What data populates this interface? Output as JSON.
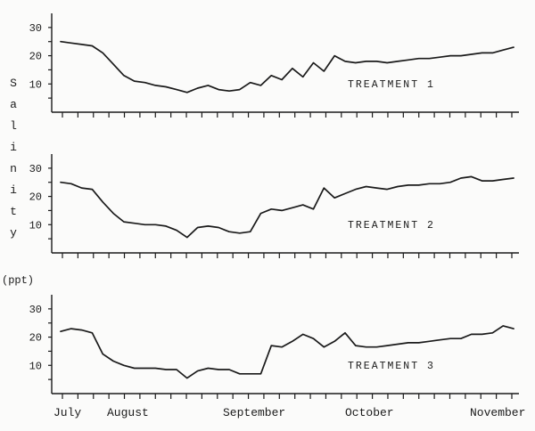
{
  "page": {
    "background": "#fbfbfa",
    "ink": "#1a1a1a"
  },
  "y_axis": {
    "label_vertical": "Salinity",
    "unit": "(ppt)",
    "tick_labels": [
      "30",
      "20",
      "10"
    ]
  },
  "x_axis": {
    "month_labels": [
      "July",
      "August",
      "September",
      "October",
      "November"
    ]
  },
  "chart_data": [
    {
      "type": "line",
      "title": "TREATMENT 1",
      "ylabel": "Salinity (ppt)",
      "ylim": [
        0,
        35
      ],
      "yticks": [
        10,
        20,
        30
      ],
      "x_range_months": [
        "July",
        "November"
      ],
      "grid": false,
      "values": [
        25,
        24.5,
        24,
        23.5,
        21,
        17,
        13,
        11,
        10.5,
        9.5,
        9,
        8,
        7,
        8.5,
        9.5,
        8,
        7.5,
        8,
        10.5,
        9.5,
        13,
        11.5,
        15.5,
        12.5,
        17.5,
        14.5,
        20,
        18,
        17.5,
        18,
        18,
        17.5,
        18,
        18.5,
        19,
        19,
        19.5,
        20,
        20,
        20.5,
        21,
        21,
        22,
        23
      ]
    },
    {
      "type": "line",
      "title": "TREATMENT 2",
      "ylabel": "Salinity (ppt)",
      "ylim": [
        0,
        35
      ],
      "yticks": [
        10,
        20,
        30
      ],
      "x_range_months": [
        "July",
        "November"
      ],
      "grid": false,
      "values": [
        25,
        24.5,
        23,
        22.5,
        18,
        14,
        11,
        10.5,
        10,
        10,
        9.5,
        8,
        5.5,
        9,
        9.5,
        9,
        7.5,
        7,
        7.5,
        14,
        15.5,
        15,
        16,
        17,
        15.5,
        23,
        19.5,
        21,
        22.5,
        23.5,
        23,
        22.5,
        23.5,
        24,
        24,
        24.5,
        24.5,
        25,
        26.5,
        27,
        25.5,
        25.5,
        26,
        26.5
      ]
    },
    {
      "type": "line",
      "title": "TREATMENT 3",
      "ylabel": "Salinity (ppt)",
      "ylim": [
        0,
        35
      ],
      "yticks": [
        10,
        20,
        30
      ],
      "x_range_months": [
        "July",
        "November"
      ],
      "grid": false,
      "values": [
        22,
        23,
        22.5,
        21.5,
        14,
        11.5,
        10,
        9,
        9,
        9,
        8.5,
        8.5,
        5.5,
        8,
        9,
        8.5,
        8.5,
        7,
        7,
        7,
        17,
        16.5,
        18.5,
        21,
        19.5,
        16.5,
        18.5,
        21.5,
        17,
        16.5,
        16.5,
        17,
        17.5,
        18,
        18,
        18.5,
        19,
        19.5,
        19.5,
        21,
        21,
        21.5,
        24,
        23
      ]
    }
  ]
}
